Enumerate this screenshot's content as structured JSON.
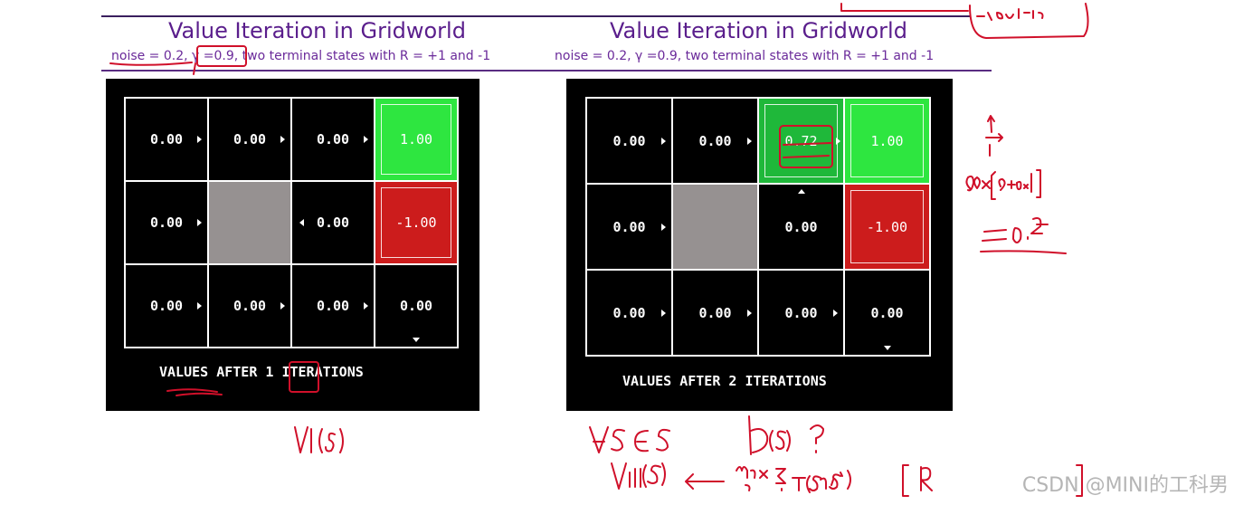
{
  "slides": [
    {
      "title": "Value Iteration in Gridworld",
      "subtitle": "noise = 0.2, γ =0.9, two terminal states with R = +1 and -1",
      "caption": "VALUES AFTER 1 ITERATIONS",
      "rows": [
        [
          "0.00",
          "0.00",
          "0.00",
          "1.00"
        ],
        [
          "0.00",
          "",
          "0.00",
          "-1.00"
        ],
        [
          "0.00",
          "0.00",
          "0.00",
          "0.00"
        ]
      ]
    },
    {
      "title": "Value Iteration in Gridworld",
      "subtitle": "noise = 0.2, γ =0.9, two terminal states with R = +1 and -1",
      "caption": "VALUES AFTER 2 ITERATIONS",
      "rows": [
        [
          "0.00",
          "0.00",
          "0.72",
          "1.00"
        ],
        [
          "0.00",
          "",
          "0.00",
          "-1.00"
        ],
        [
          "0.00",
          "0.00",
          "0.00",
          "0.00"
        ]
      ]
    }
  ],
  "colors": {
    "title": "#5a1e8c",
    "goal": "#2ee640",
    "pit": "#cc1c1c",
    "wall": "#969191",
    "ink": "#d0102a"
  },
  "watermark": "CSDN @MINI的工科男"
}
